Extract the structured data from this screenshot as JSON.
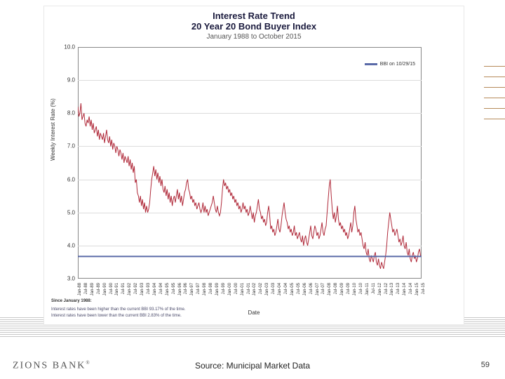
{
  "slide": {
    "page_number": "59",
    "source_label": "Source: Municipal Market Data",
    "logo_text": "ZIONS BANK"
  },
  "decor": {
    "right_line_color": "#b68a5a",
    "bottom_line_color": "#c8c8c8"
  },
  "chart": {
    "type": "line",
    "title_line1": "Interest Rate Trend",
    "title_line2": "20 Year 20 Bond Buyer Index",
    "subtitle": "January 1988 to October 2015",
    "title_color": "#1a1a3d",
    "ylabel": "Weekly Interest Rate (%)",
    "xlabel": "Date",
    "ylim": [
      3.0,
      10.0
    ],
    "ytick_step": 1.0,
    "yticks": [
      "3.0",
      "4.0",
      "5.0",
      "6.0",
      "7.0",
      "8.0",
      "9.0",
      "10.0"
    ],
    "background_color": "#ffffff",
    "grid_color": "#dcdcdc",
    "border_color": "#888888",
    "tick_fontsize": 8,
    "label_fontsize": 8,
    "legend": {
      "label": "BBI on 10/29/15",
      "color": "#5a6aa8"
    },
    "ref_line": {
      "value": 3.67,
      "color": "#5a6aa8",
      "width": 2
    },
    "series": {
      "color": "#b02a3a",
      "width": 1,
      "values": [
        8.2,
        7.9,
        8.0,
        8.3,
        7.8,
        7.9,
        8.0,
        7.7,
        7.6,
        7.8,
        7.7,
        7.9,
        7.6,
        7.8,
        7.5,
        7.7,
        7.4,
        7.5,
        7.6,
        7.3,
        7.5,
        7.2,
        7.4,
        7.3,
        7.2,
        7.4,
        7.1,
        7.3,
        7.5,
        7.2,
        7.1,
        7.3,
        7.0,
        7.2,
        6.9,
        7.1,
        7.0,
        6.8,
        7.0,
        6.9,
        6.7,
        6.9,
        6.8,
        6.6,
        6.8,
        6.5,
        6.7,
        6.6,
        6.5,
        6.7,
        6.4,
        6.6,
        6.3,
        6.5,
        6.2,
        6.4,
        5.9,
        6.0,
        5.6,
        5.5,
        5.3,
        5.5,
        5.2,
        5.4,
        5.1,
        5.3,
        5.0,
        5.2,
        5.0,
        5.1,
        5.3,
        5.7,
        6.0,
        6.2,
        6.4,
        6.1,
        6.3,
        6.0,
        6.2,
        5.9,
        6.1,
        5.8,
        6.0,
        5.7,
        5.6,
        5.8,
        5.5,
        5.7,
        5.4,
        5.6,
        5.3,
        5.5,
        5.2,
        5.4,
        5.5,
        5.3,
        5.5,
        5.7,
        5.4,
        5.6,
        5.3,
        5.5,
        5.2,
        5.4,
        5.6,
        5.7,
        5.9,
        6.0,
        5.7,
        5.6,
        5.4,
        5.5,
        5.3,
        5.4,
        5.2,
        5.3,
        5.1,
        5.2,
        5.3,
        5.1,
        5.0,
        5.1,
        5.3,
        5.0,
        5.2,
        5.0,
        5.1,
        4.9,
        5.0,
        5.1,
        5.2,
        5.3,
        5.5,
        5.3,
        5.1,
        5.0,
        5.2,
        5.0,
        4.9,
        5.0,
        5.3,
        5.7,
        6.0,
        5.8,
        5.9,
        5.7,
        5.8,
        5.6,
        5.7,
        5.5,
        5.6,
        5.4,
        5.5,
        5.3,
        5.4,
        5.2,
        5.3,
        5.1,
        5.2,
        5.0,
        5.1,
        5.3,
        5.1,
        5.2,
        5.0,
        5.1,
        4.9,
        5.0,
        5.2,
        5.0,
        4.8,
        5.0,
        4.7,
        4.9,
        5.0,
        5.2,
        5.4,
        5.1,
        5.0,
        4.8,
        4.9,
        4.7,
        4.8,
        4.6,
        4.7,
        5.0,
        5.2,
        4.9,
        4.5,
        4.6,
        4.4,
        4.5,
        4.3,
        4.4,
        4.6,
        4.8,
        4.5,
        4.4,
        4.6,
        4.9,
        5.1,
        5.3,
        5.0,
        4.8,
        4.7,
        4.5,
        4.6,
        4.4,
        4.5,
        4.3,
        4.4,
        4.6,
        4.3,
        4.4,
        4.2,
        4.3,
        4.4,
        4.2,
        4.1,
        4.3,
        4.0,
        4.2,
        4.3,
        4.1,
        4.0,
        4.2,
        4.4,
        4.6,
        4.3,
        4.2,
        4.4,
        4.6,
        4.5,
        4.3,
        4.4,
        4.2,
        4.3,
        4.5,
        4.7,
        4.4,
        4.3,
        4.5,
        4.6,
        5.0,
        5.4,
        5.8,
        6.0,
        5.5,
        5.1,
        4.8,
        5.0,
        4.7,
        4.9,
        5.2,
        4.8,
        4.6,
        4.7,
        4.5,
        4.6,
        4.4,
        4.5,
        4.3,
        4.4,
        4.2,
        4.3,
        4.5,
        4.7,
        4.4,
        4.6,
        5.0,
        5.2,
        4.8,
        4.6,
        4.4,
        4.5,
        4.3,
        4.4,
        4.2,
        4.0,
        3.9,
        4.1,
        3.8,
        3.7,
        3.9,
        3.6,
        3.5,
        3.7,
        3.6,
        3.5,
        3.7,
        3.8,
        3.5,
        3.4,
        3.6,
        3.4,
        3.3,
        3.5,
        3.4,
        3.3,
        3.5,
        3.7,
        4.0,
        4.4,
        4.7,
        5.0,
        4.8,
        4.6,
        4.4,
        4.5,
        4.3,
        4.4,
        4.5,
        4.3,
        4.1,
        4.2,
        4.0,
        4.1,
        4.3,
        4.0,
        3.9,
        4.1,
        3.8,
        3.7,
        3.9,
        3.6,
        3.5,
        3.7,
        3.8,
        3.6,
        3.7,
        3.5,
        3.6,
        3.8,
        3.9,
        3.7,
        3.67
      ]
    },
    "x_categories": [
      "Jan-88",
      "Jul-88",
      "Jan-89",
      "Jul-89",
      "Jan-90",
      "Jul-90",
      "Jan-91",
      "Jul-91",
      "Jan-92",
      "Jul-92",
      "Jan-93",
      "Jul-93",
      "Jan-94",
      "Jul-94",
      "Jan-95",
      "Jul-95",
      "Jan-96",
      "Jul-96",
      "Jan-97",
      "Jul-97",
      "Jan-98",
      "Jul-98",
      "Jan-99",
      "Jul-99",
      "Jan-00",
      "Jul-00",
      "Jan-01",
      "Jul-01",
      "Jan-02",
      "Jul-02",
      "Jan-03",
      "Jul-03",
      "Jan-04",
      "Jul-04",
      "Jan-05",
      "Jul-05",
      "Jan-06",
      "Jul-06",
      "Jan-07",
      "Jul-07",
      "Jan-08",
      "Jul-08",
      "Jan-09",
      "Jul-09",
      "Jan-10",
      "Jul-10",
      "Jan-11",
      "Jul-11",
      "Jan-12",
      "Jul-12",
      "Jan-13",
      "Jul-13",
      "Jan-14",
      "Jul-14",
      "Jan-15",
      "Jul-15"
    ],
    "footnotes": {
      "heading": "Since January 1988:",
      "line1": "Interest rates have been higher than the current BBI 93.17% of the time.",
      "line2": "Interest rates have been lower than the current BBI 2.83% of the time."
    }
  }
}
